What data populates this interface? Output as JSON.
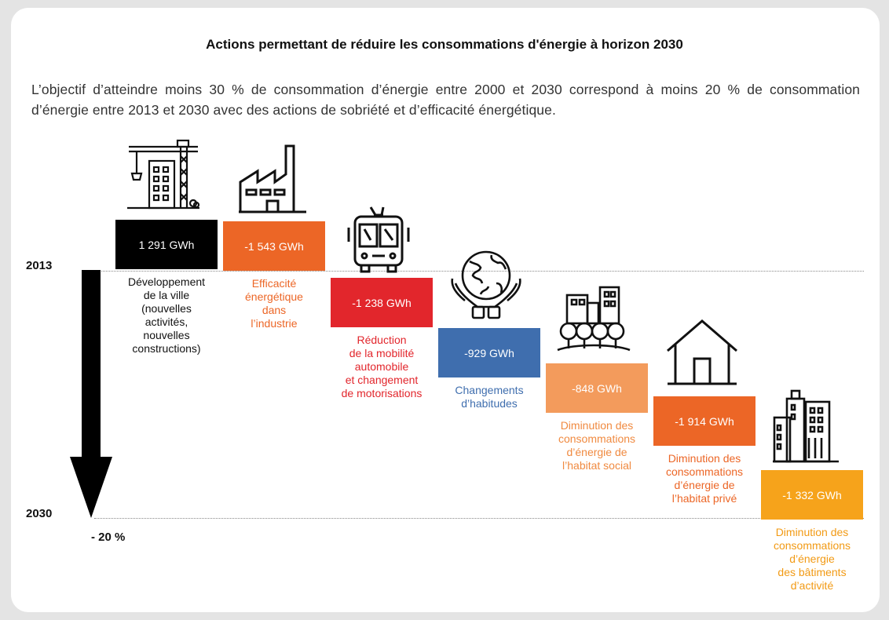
{
  "chart_data": {
    "type": "waterfall",
    "title": "Actions permettant de réduire les consommations d'énergie à horizon 2030",
    "subtitle": "L’objectif d’atteindre moins 30 % de consommation d’énergie entre 2000 et 2030 correspond à moins 20 % de consommation d’énergie entre 2013 et 2030 avec des actions de sobriété et d’efficacité énergétique.",
    "y_start_label": "2013",
    "y_end_label": "2030",
    "total_change_label": "- 20 %",
    "unit": "GWh",
    "steps": [
      {
        "value": 1291,
        "label": "1 291 GWh",
        "caption": [
          "Développement",
          "de la ville",
          "(nouvelles",
          "activités,",
          "nouvelles",
          "constructions)"
        ],
        "color": "#000000",
        "caption_color": "#111111",
        "icon": "construction-crane-icon"
      },
      {
        "value": -1543,
        "label": "-1 543 GWh",
        "caption": [
          "Efficacité",
          "énergétique",
          "dans",
          "l’industrie"
        ],
        "color": "#ec6626",
        "caption_color": "#ec6626",
        "icon": "factory-icon"
      },
      {
        "value": -1238,
        "label": "-1 238 GWh",
        "caption": [
          "Réduction",
          "de la mobilité",
          "automobile",
          "et changement",
          "de motorisations"
        ],
        "color": "#e2262c",
        "caption_color": "#e2262c",
        "icon": "bus-icon"
      },
      {
        "value": -929,
        "label": "-929 GWh",
        "caption": [
          "Changements",
          "d’habitudes"
        ],
        "color": "#3f6eae",
        "caption_color": "#3f6eae",
        "icon": "globe-hands-icon"
      },
      {
        "value": -848,
        "label": "-848 GWh",
        "caption": [
          "Diminution des",
          "consommations",
          "d’énergie de",
          "l’habitat social"
        ],
        "color": "#f39b5c",
        "caption_color": "#f08a40",
        "icon": "city-trees-icon"
      },
      {
        "value": -1914,
        "label": "-1 914 GWh",
        "caption": [
          "Diminution des",
          "consommations",
          "d’énergie de",
          "l’habitat privé"
        ],
        "color": "#ec6626",
        "caption_color": "#ec6626",
        "icon": "house-icon"
      },
      {
        "value": -1332,
        "label": "-1 332 GWh",
        "caption": [
          "Diminution des",
          "consommations",
          "d’énergie",
          "des bâtiments",
          "d’activité"
        ],
        "color": "#f6a31b",
        "caption_color": "#f29a14",
        "icon": "office-buildings-icon"
      }
    ]
  }
}
